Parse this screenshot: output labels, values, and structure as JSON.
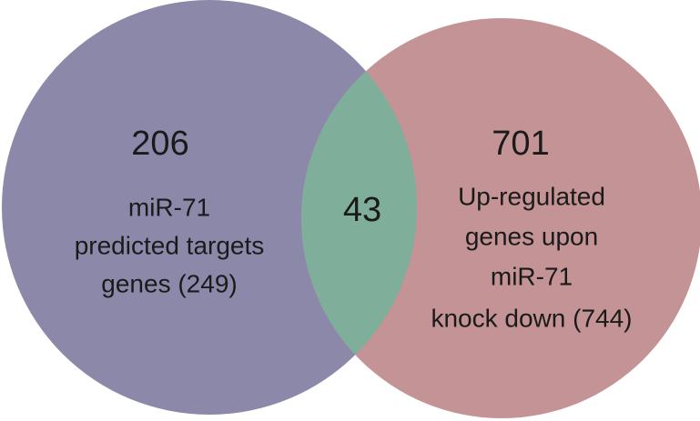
{
  "sets": [
    {
      "count": 206,
      "label": [
        "miR-71",
        "predicted targets",
        "genes (249)"
      ]
    },
    {
      "count": 701,
      "label": [
        "Up-regulated",
        "genes upon",
        "miR-71",
        "knock down (744)"
      ]
    }
  ],
  "intersection": {
    "count": 43
  }
}
